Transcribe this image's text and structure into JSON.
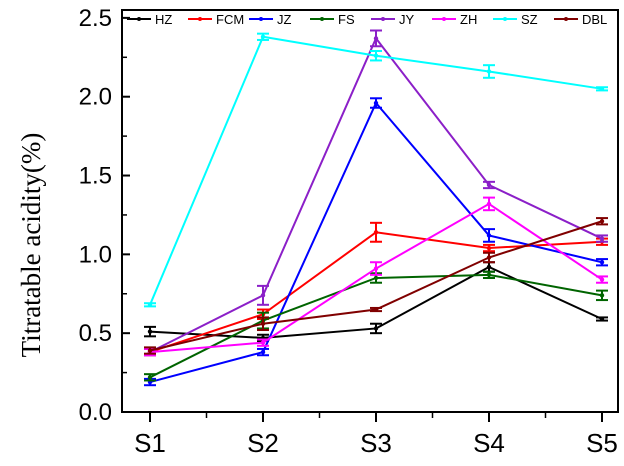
{
  "chart_data": {
    "type": "line",
    "title": "",
    "xlabel": "",
    "ylabel": "Titratable acidity(%)",
    "categories": [
      "S1",
      "S2",
      "S3",
      "S4",
      "S5"
    ],
    "y_ticks": [
      "0.0",
      "0.5",
      "1.0",
      "1.5",
      "2.0",
      "2.5"
    ],
    "ylim": [
      0,
      2.55
    ],
    "grid": false,
    "legend_position": "top",
    "series": [
      {
        "name": "HZ",
        "color": "#000000",
        "values": [
          0.51,
          0.47,
          0.53,
          0.92,
          0.59
        ],
        "errors": [
          0.03,
          0.02,
          0.03,
          0.03,
          0.01
        ]
      },
      {
        "name": "FCM",
        "color": "#ff0000",
        "values": [
          0.38,
          0.62,
          1.14,
          1.04,
          1.08
        ],
        "errors": [
          0.02,
          0.03,
          0.06,
          0.02,
          0.02
        ]
      },
      {
        "name": "JZ",
        "color": "#0000ff",
        "values": [
          0.19,
          0.38,
          1.96,
          1.12,
          0.95
        ],
        "errors": [
          0.02,
          0.02,
          0.03,
          0.04,
          0.02
        ]
      },
      {
        "name": "FS",
        "color": "#006400",
        "values": [
          0.22,
          0.58,
          0.85,
          0.87,
          0.74
        ],
        "errors": [
          0.02,
          0.05,
          0.03,
          0.02,
          0.03
        ]
      },
      {
        "name": "JY",
        "color": "#8b1fc8",
        "values": [
          0.38,
          0.74,
          2.37,
          1.44,
          1.1
        ],
        "errors": [
          0.02,
          0.06,
          0.05,
          0.02,
          0.02
        ]
      },
      {
        "name": "ZH",
        "color": "#ff00ff",
        "values": [
          0.38,
          0.44,
          0.91,
          1.32,
          0.84
        ],
        "errors": [
          0.02,
          0.02,
          0.04,
          0.04,
          0.02
        ]
      },
      {
        "name": "SZ",
        "color": "#00ffff",
        "values": [
          0.68,
          2.38,
          2.26,
          2.16,
          2.05
        ],
        "errors": [
          0.01,
          0.02,
          0.03,
          0.04,
          0.01
        ]
      },
      {
        "name": "DBL",
        "color": "#800000",
        "values": [
          0.39,
          0.56,
          0.65,
          0.98,
          1.21
        ],
        "errors": [
          0.02,
          0.04,
          0.01,
          0.03,
          0.02
        ]
      }
    ]
  }
}
